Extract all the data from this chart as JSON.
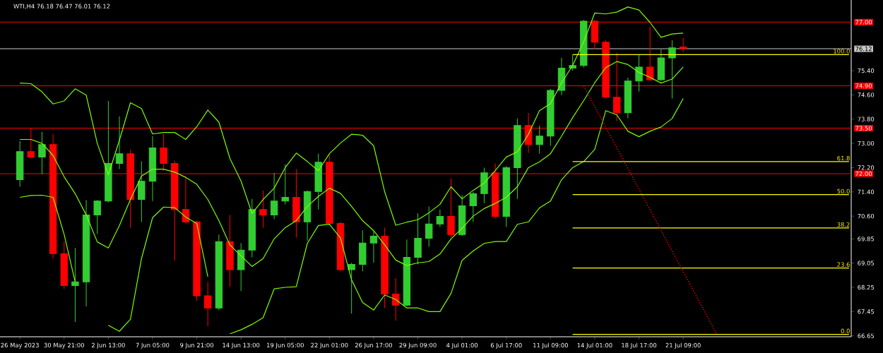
{
  "chart_data": {
    "type": "candlestick",
    "title": "WTI,H4  76.18 76.47 76.01 76.12",
    "categories": [
      "26 May 2023",
      null,
      null,
      null,
      "30 May 21:00",
      null,
      null,
      null,
      "2 Jun 13:00",
      null,
      null,
      null,
      "7 Jun 05:00",
      null,
      null,
      null,
      "9 Jun 21:00",
      null,
      null,
      null,
      "14 Jun 13:00",
      null,
      null,
      null,
      "19 Jun 05:00",
      null,
      null,
      null,
      "22 Jun 01:00",
      null,
      null,
      null,
      "26 Jun 17:00",
      null,
      null,
      null,
      "29 Jun 09:00",
      null,
      null,
      null,
      "4 Jul 01:00",
      null,
      null,
      null,
      "6 Jul 17:00",
      null,
      null,
      null,
      "11 Jul 09:00",
      null,
      null,
      null,
      "14 Jul 01:00",
      null,
      null,
      null,
      "18 Jul 17:00",
      null,
      null,
      null,
      "21 Jul 09:00",
      null,
      null,
      null,
      null,
      null,
      null,
      null,
      null,
      null,
      null,
      null,
      null,
      null,
      null,
      null
    ],
    "ohlc": [
      [
        71.8,
        73.08,
        71.57,
        72.73
      ],
      [
        72.73,
        73.5,
        72.5,
        72.55
      ],
      [
        72.55,
        73.38,
        71.98,
        72.96
      ],
      [
        72.96,
        73.31,
        69.2,
        69.36
      ],
      [
        69.36,
        69.76,
        68.2,
        68.31
      ],
      [
        68.31,
        69.55,
        67.11,
        68.43
      ],
      [
        68.43,
        71.13,
        67.62,
        70.64
      ],
      [
        70.64,
        71.13,
        70.01,
        71.1
      ],
      [
        71.1,
        74.4,
        71.05,
        72.34
      ],
      [
        72.34,
        73.89,
        72.15,
        72.66
      ],
      [
        72.66,
        72.8,
        70.22,
        71.15
      ],
      [
        71.15,
        72.41,
        70.41,
        71.75
      ],
      [
        71.75,
        73.24,
        71.1,
        72.85
      ],
      [
        72.85,
        73.31,
        72.1,
        72.34
      ],
      [
        72.34,
        72.43,
        69.13,
        70.82
      ],
      [
        70.82,
        71.87,
        70.35,
        70.41
      ],
      [
        70.41,
        70.45,
        67.8,
        67.97
      ],
      [
        67.97,
        68.43,
        66.97,
        67.57
      ],
      [
        67.57,
        69.99,
        67.5,
        69.76
      ],
      [
        69.76,
        70.64,
        68.27,
        68.83
      ],
      [
        68.83,
        69.71,
        68.13,
        69.48
      ],
      [
        69.48,
        71.17,
        69.24,
        70.82
      ],
      [
        70.82,
        71.45,
        70.22,
        70.64
      ],
      [
        70.64,
        72.03,
        70.5,
        71.1
      ],
      [
        71.1,
        72.31,
        70.99,
        71.22
      ],
      [
        71.22,
        72.15,
        69.89,
        70.41
      ],
      [
        70.41,
        71.45,
        69.78,
        71.41
      ],
      [
        71.41,
        72.66,
        70.82,
        72.38
      ],
      [
        72.38,
        72.62,
        70.3,
        70.36
      ],
      [
        70.36,
        70.41,
        68.78,
        68.83
      ],
      [
        68.83,
        69.06,
        67.38,
        69.01
      ],
      [
        69.01,
        70.13,
        68.78,
        69.71
      ],
      [
        69.71,
        70.1,
        69.06,
        69.94
      ],
      [
        69.94,
        70.22,
        67.57,
        68.03
      ],
      [
        68.03,
        68.55,
        67.15,
        67.66
      ],
      [
        67.66,
        69.83,
        67.62,
        69.24
      ],
      [
        69.24,
        70.69,
        69.01,
        69.87
      ],
      [
        69.87,
        70.92,
        69.59,
        70.34
      ],
      [
        70.34,
        70.82,
        70.24,
        70.59
      ],
      [
        70.59,
        71.85,
        69.89,
        69.99
      ],
      [
        69.99,
        71.29,
        69.95,
        70.94
      ],
      [
        70.94,
        71.4,
        70.41,
        71.34
      ],
      [
        71.34,
        72.2,
        71.03,
        72.03
      ],
      [
        72.03,
        72.34,
        70.52,
        70.59
      ],
      [
        70.59,
        72.25,
        70.24,
        72.2
      ],
      [
        72.2,
        73.82,
        71.17,
        73.59
      ],
      [
        73.59,
        74.01,
        72.68,
        72.96
      ],
      [
        72.96,
        73.59,
        72.66,
        73.24
      ],
      [
        73.24,
        74.8,
        72.92,
        74.75
      ],
      [
        74.75,
        75.82,
        74.59,
        75.48
      ],
      [
        75.48,
        75.92,
        75.4,
        75.57
      ],
      [
        75.57,
        77.08,
        75.5,
        77.03
      ],
      [
        77.03,
        77.08,
        76.1,
        76.34
      ],
      [
        76.34,
        76.4,
        74.48,
        74.52
      ],
      [
        74.52,
        75.99,
        73.73,
        74.01
      ],
      [
        74.01,
        75.17,
        73.82,
        75.06
      ],
      [
        75.06,
        75.92,
        74.71,
        75.52
      ],
      [
        75.52,
        76.85,
        75.06,
        75.1
      ],
      [
        75.1,
        76.1,
        75.05,
        75.82
      ],
      [
        75.82,
        76.4,
        74.48,
        76.15
      ],
      [
        76.18,
        76.47,
        76.01,
        76.12
      ],
      null,
      null,
      null,
      null,
      null,
      null,
      null,
      null,
      null,
      null,
      null,
      null,
      null,
      null,
      null
    ],
    "colors": [
      "#32cd32",
      "#ff0000",
      "#32cd32",
      "#ff0000",
      "#ff0000",
      "#32cd32",
      "#32cd32",
      "#32cd32",
      "#32cd32",
      "#32cd32",
      "#ff0000",
      "#32cd32",
      "#32cd32",
      "#ff0000",
      "#ff0000",
      "#ff0000",
      "#ff0000",
      "#ff0000",
      "#32cd32",
      "#ff0000",
      "#32cd32",
      "#32cd32",
      "#ff0000",
      "#32cd32",
      "#32cd32",
      "#ff0000",
      "#32cd32",
      "#32cd32",
      "#ff0000",
      "#ff0000",
      "#32cd32",
      "#32cd32",
      "#32cd32",
      "#ff0000",
      "#ff0000",
      "#32cd32",
      "#32cd32",
      "#32cd32",
      "#32cd32",
      "#ff0000",
      "#32cd32",
      "#32cd32",
      "#32cd32",
      "#ff0000",
      "#32cd32",
      "#32cd32",
      "#ff0000",
      "#32cd32",
      "#32cd32",
      "#32cd32",
      "#32cd32",
      "#32cd32",
      "#ff0000",
      "#ff0000",
      "#ff0000",
      "#32cd32",
      "#32cd32",
      "#ff0000",
      "#32cd32",
      "#32cd32",
      "#ff0000",
      null,
      null,
      null,
      null,
      null,
      null,
      null,
      null,
      null,
      null,
      null,
      null,
      null,
      null,
      null
    ],
    "series": [
      {
        "type": "line",
        "color": "#7cfc00",
        "values": [
          74.99,
          74.97,
          74.7,
          74.3,
          74.4,
          74.8,
          74.59,
          73.0,
          71.96,
          73.1,
          74.34,
          74.15,
          73.31,
          73.36,
          73.36,
          73.13,
          73.55,
          74.1,
          73.7,
          72.5,
          71.76,
          70.69,
          71.15,
          71.52,
          72.2,
          72.68,
          72.4,
          72.1,
          72.66,
          73.01,
          73.3,
          73.27,
          72.92,
          71.4,
          70.3,
          70.4,
          70.48,
          70.71,
          70.99,
          71.57,
          71.17,
          71.45,
          71.69,
          72.1,
          72.55,
          72.72,
          73.3,
          74.08,
          74.31,
          75.0,
          75.57,
          76.35,
          77.3,
          77.27,
          77.33,
          77.5,
          77.4,
          76.99,
          76.5,
          76.61,
          76.64,
          null,
          null,
          null,
          null,
          null,
          null,
          null,
          null,
          null,
          null,
          null,
          null,
          null,
          null,
          null
        ]
      },
      {
        "type": "line",
        "color": "#7cfc00",
        "values": [
          73.13,
          73.13,
          73.0,
          72.6,
          71.9,
          71.34,
          70.64,
          69.75,
          69.55,
          70.29,
          71.15,
          71.92,
          72.15,
          72.15,
          72.05,
          71.88,
          71.65,
          71.15,
          70.45,
          69.65,
          69.29,
          68.94,
          69.2,
          69.85,
          70.22,
          70.45,
          70.92,
          71.25,
          71.52,
          71.35,
          70.92,
          70.45,
          70.12,
          69.65,
          69.15,
          68.97,
          69.06,
          69.1,
          69.35,
          69.85,
          70.2,
          70.6,
          70.85,
          71.02,
          71.22,
          71.57,
          72.2,
          72.39,
          72.66,
          73.24,
          73.85,
          74.41,
          75.0,
          75.5,
          75.7,
          75.6,
          75.34,
          75.18,
          74.99,
          75.12,
          75.52,
          null,
          null,
          null,
          null,
          null,
          null,
          null,
          null,
          null,
          null,
          null,
          null,
          null,
          null,
          null
        ]
      },
      {
        "type": "line",
        "color": "#7cfc00",
        "values": [
          71.22,
          71.28,
          71.29,
          71.22,
          70.0,
          68.43,
          null,
          null,
          67.0,
          66.8,
          67.2,
          69.2,
          70.55,
          70.9,
          70.88,
          70.57,
          70.36,
          68.6,
          null,
          66.72,
          66.85,
          67.03,
          67.25,
          68.2,
          68.25,
          68.27,
          69.7,
          70.29,
          70.33,
          69.88,
          68.5,
          67.75,
          67.5,
          68.0,
          67.85,
          67.57,
          67.57,
          67.45,
          67.45,
          68.05,
          69.14,
          69.45,
          69.7,
          69.76,
          69.76,
          70.33,
          70.41,
          70.87,
          71.1,
          71.8,
          72.2,
          72.4,
          72.8,
          74.08,
          73.94,
          73.4,
          73.22,
          73.4,
          73.54,
          73.82,
          74.48,
          null,
          null,
          null,
          null,
          null,
          null,
          null,
          null,
          null,
          null,
          null,
          null,
          null,
          null,
          null
        ]
      },
      {
        "type": "line",
        "color": "#ffff00",
        "values": [
          null,
          null,
          null,
          null,
          null,
          null,
          null,
          null,
          null,
          null,
          null,
          null,
          null,
          null,
          null,
          null,
          null,
          null,
          null,
          null,
          null,
          null,
          null,
          null,
          null,
          null,
          null,
          null,
          null,
          null,
          null,
          null,
          null,
          null,
          null,
          null,
          null,
          null,
          null,
          null,
          null,
          null,
          null,
          null,
          null,
          null,
          null,
          null,
          null,
          null,
          75.93,
          75.93,
          75.93,
          75.93,
          75.93,
          75.93,
          75.93,
          75.93,
          75.93,
          75.93,
          75.93,
          75.93,
          75.93,
          75.93,
          75.93,
          75.93,
          75.93,
          75.93,
          75.93,
          75.93,
          75.93,
          75.93,
          75.93,
          75.93,
          75.93,
          75.93
        ]
      },
      {
        "type": "line",
        "color": "#ffff00",
        "values": [
          null,
          null,
          null,
          null,
          null,
          null,
          null,
          null,
          null,
          null,
          null,
          null,
          null,
          null,
          null,
          null,
          null,
          null,
          null,
          null,
          null,
          null,
          null,
          null,
          null,
          null,
          null,
          null,
          null,
          null,
          null,
          null,
          null,
          null,
          null,
          null,
          null,
          null,
          null,
          null,
          null,
          null,
          null,
          null,
          null,
          null,
          null,
          null,
          null,
          null,
          72.4,
          72.4,
          72.4,
          72.4,
          72.4,
          72.4,
          72.4,
          72.4,
          72.4,
          72.4,
          72.4,
          72.4,
          72.4,
          72.4,
          72.4,
          72.4,
          72.4,
          72.4,
          72.4,
          72.4,
          72.4,
          72.4,
          72.4,
          72.4,
          72.4,
          72.4
        ]
      },
      {
        "type": "line",
        "color": "#ffff00",
        "values": [
          null,
          null,
          null,
          null,
          null,
          null,
          null,
          null,
          null,
          null,
          null,
          null,
          null,
          null,
          null,
          null,
          null,
          null,
          null,
          null,
          null,
          null,
          null,
          null,
          null,
          null,
          null,
          null,
          null,
          null,
          null,
          null,
          null,
          null,
          null,
          null,
          null,
          null,
          null,
          null,
          null,
          null,
          null,
          null,
          null,
          null,
          null,
          null,
          null,
          null,
          71.31,
          71.31,
          71.31,
          71.31,
          71.31,
          71.31,
          71.31,
          71.31,
          71.31,
          71.31,
          71.31,
          71.31,
          71.31,
          71.31,
          71.31,
          71.31,
          71.31,
          71.31,
          71.31,
          71.31,
          71.31,
          71.31,
          71.31,
          71.31,
          71.31,
          71.31
        ]
      },
      {
        "type": "line",
        "color": "#ffff00",
        "values": [
          null,
          null,
          null,
          null,
          null,
          null,
          null,
          null,
          null,
          null,
          null,
          null,
          null,
          null,
          null,
          null,
          null,
          null,
          null,
          null,
          null,
          null,
          null,
          null,
          null,
          null,
          null,
          null,
          null,
          null,
          null,
          null,
          null,
          null,
          null,
          null,
          null,
          null,
          null,
          null,
          null,
          null,
          null,
          null,
          null,
          null,
          null,
          null,
          null,
          null,
          70.21,
          70.21,
          70.21,
          70.21,
          70.21,
          70.21,
          70.21,
          70.21,
          70.21,
          70.21,
          70.21,
          70.21,
          70.21,
          70.21,
          70.21,
          70.21,
          70.21,
          70.21,
          70.21,
          70.21,
          70.21,
          70.21,
          70.21,
          70.21,
          70.21,
          70.21
        ]
      },
      {
        "type": "line",
        "color": "#ffff00",
        "values": [
          null,
          null,
          null,
          null,
          null,
          null,
          null,
          null,
          null,
          null,
          null,
          null,
          null,
          null,
          null,
          null,
          null,
          null,
          null,
          null,
          null,
          null,
          null,
          null,
          null,
          null,
          null,
          null,
          null,
          null,
          null,
          null,
          null,
          null,
          null,
          null,
          null,
          null,
          null,
          null,
          null,
          null,
          null,
          null,
          null,
          null,
          null,
          null,
          null,
          null,
          68.89,
          68.89,
          68.89,
          68.89,
          68.89,
          68.89,
          68.89,
          68.89,
          68.89,
          68.89,
          68.89,
          68.89,
          68.89,
          68.89,
          68.89,
          68.89,
          68.89,
          68.89,
          68.89,
          68.89,
          68.89,
          68.89,
          68.89,
          68.89,
          68.89,
          68.89
        ]
      },
      {
        "type": "line",
        "color": "#ffff00",
        "values": [
          null,
          null,
          null,
          null,
          null,
          null,
          null,
          null,
          null,
          null,
          null,
          null,
          null,
          null,
          null,
          null,
          null,
          null,
          null,
          null,
          null,
          null,
          null,
          null,
          null,
          null,
          null,
          null,
          null,
          null,
          null,
          null,
          null,
          null,
          null,
          null,
          null,
          null,
          null,
          null,
          null,
          null,
          null,
          null,
          null,
          null,
          null,
          null,
          null,
          null,
          66.7,
          66.7,
          66.7,
          66.7,
          66.7,
          66.7,
          66.7,
          66.7,
          66.7,
          66.7,
          66.7,
          66.7,
          66.7,
          66.7,
          66.7,
          66.7,
          66.7,
          66.7,
          66.7,
          66.7,
          66.7,
          66.7,
          66.7,
          66.7,
          66.7,
          66.7
        ]
      },
      {
        "type": "line",
        "color": "#ff0000",
        "line_style": "dotted",
        "values": [
          null,
          null,
          null,
          null,
          null,
          null,
          null,
          null,
          null,
          null,
          null,
          null,
          null,
          null,
          null,
          null,
          null,
          null,
          null,
          null,
          null,
          null,
          null,
          null,
          null,
          null,
          null,
          null,
          null,
          null,
          null,
          null,
          null,
          null,
          null,
          null,
          null,
          null,
          null,
          null,
          null,
          null,
          null,
          null,
          null,
          null,
          null,
          null,
          null,
          null,
          null,
          74.89,
          74.21,
          73.53,
          72.85,
          72.17,
          71.49,
          70.81,
          70.13,
          69.45,
          68.77,
          68.09,
          67.41,
          66.73,
          null,
          null,
          null,
          null,
          null,
          null,
          null,
          null,
          null,
          null,
          null,
          null
        ]
      }
    ],
    "ref_lines": [
      {
        "axis": "y",
        "value": 77.0,
        "label": "77.00",
        "color": "#ff0000"
      },
      {
        "axis": "y",
        "value": 76.12,
        "label": "76.12",
        "color": "#c8c8c8"
      },
      {
        "axis": "y",
        "value": 74.9,
        "label": "74.90",
        "color": "#ff0000"
      },
      {
        "axis": "y",
        "value": 73.5,
        "label": "73.50",
        "color": "#ff0000"
      },
      {
        "axis": "y",
        "value": 72.0,
        "label": "72.00",
        "color": "#ff0000"
      }
    ],
    "annotations": [
      {
        "text": "100.0",
        "y": 75.93
      },
      {
        "text": "61.8",
        "y": 72.4
      },
      {
        "text": "50.0",
        "y": 71.31
      },
      {
        "text": "38.2",
        "y": 70.21
      },
      {
        "text": "23.6",
        "y": 68.89
      },
      {
        "text": "0.0",
        "y": 66.7
      }
    ],
    "ylim": [
      66.62,
      77.73
    ],
    "yticks": [
      66.65,
      67.45,
      68.25,
      69.05,
      69.85,
      {
        "value": 70.6,
        "label": "70.60"
      },
      {
        "value": 71.4,
        "label": "71.40"
      },
      {
        "value": 72.2,
        "label": "72.20"
      },
      {
        "value": 73,
        "label": "73.00"
      },
      {
        "value": 73.8,
        "label": "73.80"
      },
      {
        "value": 74.6,
        "label": "74.60"
      },
      {
        "value": 75.4,
        "label": "75.40"
      }
    ]
  }
}
